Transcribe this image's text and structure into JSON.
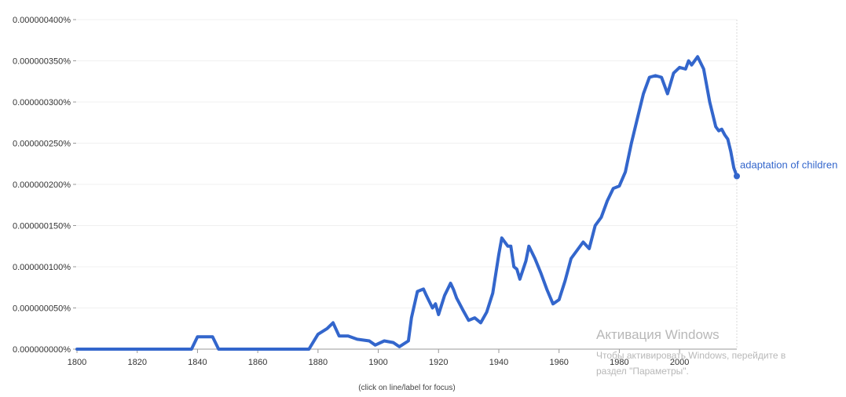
{
  "chart_data": {
    "type": "line",
    "xlim": [
      1800,
      2019
    ],
    "ylim": [
      0,
      4e-07
    ],
    "grid": true,
    "legend": "none",
    "x_ticks": [
      {
        "value": 1800,
        "label": "1800"
      },
      {
        "value": 1820,
        "label": "1820"
      },
      {
        "value": 1840,
        "label": "1840"
      },
      {
        "value": 1860,
        "label": "1860"
      },
      {
        "value": 1880,
        "label": "1880"
      },
      {
        "value": 1900,
        "label": "1900"
      },
      {
        "value": 1920,
        "label": "1920"
      },
      {
        "value": 1940,
        "label": "1940"
      },
      {
        "value": 1960,
        "label": "1960"
      },
      {
        "value": 1980,
        "label": "1980"
      },
      {
        "value": 2000,
        "label": "2000"
      }
    ],
    "y_ticks": [
      {
        "value": 4e-07,
        "label": "0.000000400%"
      },
      {
        "value": 3.5e-07,
        "label": "0.000000350%"
      },
      {
        "value": 3e-07,
        "label": "0.000000300%"
      },
      {
        "value": 2.5e-07,
        "label": "0.000000250%"
      },
      {
        "value": 2e-07,
        "label": "0.000000200%"
      },
      {
        "value": 1.5e-07,
        "label": "0.000000150%"
      },
      {
        "value": 1e-07,
        "label": "0.000000100%"
      },
      {
        "value": 5e-08,
        "label": "0.000000050%"
      },
      {
        "value": 0,
        "label": "0.000000000%"
      }
    ],
    "series": [
      {
        "name": "adaptation of children",
        "color": "#3366cc",
        "points": [
          [
            1800,
            0
          ],
          [
            1810,
            0
          ],
          [
            1820,
            0
          ],
          [
            1830,
            0
          ],
          [
            1838,
            0
          ],
          [
            1840,
            1.5e-08
          ],
          [
            1845,
            1.5e-08
          ],
          [
            1847,
            0
          ],
          [
            1860,
            0
          ],
          [
            1870,
            0
          ],
          [
            1877,
            0
          ],
          [
            1880,
            1.8e-08
          ],
          [
            1883,
            2.5e-08
          ],
          [
            1885,
            3.2e-08
          ],
          [
            1887,
            1.6e-08
          ],
          [
            1890,
            1.6e-08
          ],
          [
            1893,
            1.2e-08
          ],
          [
            1897,
            1e-08
          ],
          [
            1899,
            5e-09
          ],
          [
            1902,
            1e-08
          ],
          [
            1905,
            8e-09
          ],
          [
            1907,
            3e-09
          ],
          [
            1910,
            1e-08
          ],
          [
            1911,
            3.8e-08
          ],
          [
            1913,
            7e-08
          ],
          [
            1915,
            7.3e-08
          ],
          [
            1916,
            6.5e-08
          ],
          [
            1918,
            5e-08
          ],
          [
            1919,
            5.5e-08
          ],
          [
            1920,
            4.2e-08
          ],
          [
            1922,
            6.5e-08
          ],
          [
            1924,
            8e-08
          ],
          [
            1925,
            7.2e-08
          ],
          [
            1926,
            6.2e-08
          ],
          [
            1928,
            4.8e-08
          ],
          [
            1930,
            3.5e-08
          ],
          [
            1932,
            3.8e-08
          ],
          [
            1934,
            3.2e-08
          ],
          [
            1936,
            4.5e-08
          ],
          [
            1938,
            6.8e-08
          ],
          [
            1940,
            1.15e-07
          ],
          [
            1941,
            1.35e-07
          ],
          [
            1943,
            1.25e-07
          ],
          [
            1944,
            1.25e-07
          ],
          [
            1945,
            1e-07
          ],
          [
            1946,
            9.7e-08
          ],
          [
            1947,
            8.5e-08
          ],
          [
            1949,
            1.07e-07
          ],
          [
            1950,
            1.25e-07
          ],
          [
            1952,
            1.1e-07
          ],
          [
            1954,
            9.2e-08
          ],
          [
            1956,
            7.2e-08
          ],
          [
            1958,
            5.5e-08
          ],
          [
            1960,
            6e-08
          ],
          [
            1962,
            8.3e-08
          ],
          [
            1964,
            1.1e-07
          ],
          [
            1966,
            1.2e-07
          ],
          [
            1968,
            1.3e-07
          ],
          [
            1970,
            1.22e-07
          ],
          [
            1972,
            1.5e-07
          ],
          [
            1974,
            1.6e-07
          ],
          [
            1976,
            1.8e-07
          ],
          [
            1978,
            1.95e-07
          ],
          [
            1980,
            1.98e-07
          ],
          [
            1982,
            2.15e-07
          ],
          [
            1984,
            2.5e-07
          ],
          [
            1986,
            2.8e-07
          ],
          [
            1988,
            3.1e-07
          ],
          [
            1990,
            3.3e-07
          ],
          [
            1992,
            3.32e-07
          ],
          [
            1994,
            3.3e-07
          ],
          [
            1996,
            3.1e-07
          ],
          [
            1998,
            3.35e-07
          ],
          [
            2000,
            3.42e-07
          ],
          [
            2002,
            3.4e-07
          ],
          [
            2003,
            3.5e-07
          ],
          [
            2004,
            3.45e-07
          ],
          [
            2006,
            3.55e-07
          ],
          [
            2008,
            3.4e-07
          ],
          [
            2010,
            3e-07
          ],
          [
            2012,
            2.7e-07
          ],
          [
            2013,
            2.65e-07
          ],
          [
            2014,
            2.67e-07
          ],
          [
            2015,
            2.6e-07
          ],
          [
            2016,
            2.55e-07
          ],
          [
            2017,
            2.4e-07
          ],
          [
            2018,
            2.2e-07
          ],
          [
            2019,
            2.1e-07
          ]
        ]
      }
    ]
  },
  "hint_text": "(click on line/label for focus)",
  "watermark": {
    "title": "Активация Windows",
    "line1": "Чтобы активировать Windows, перейдите в",
    "line2": "раздел \"Параметры\"."
  }
}
